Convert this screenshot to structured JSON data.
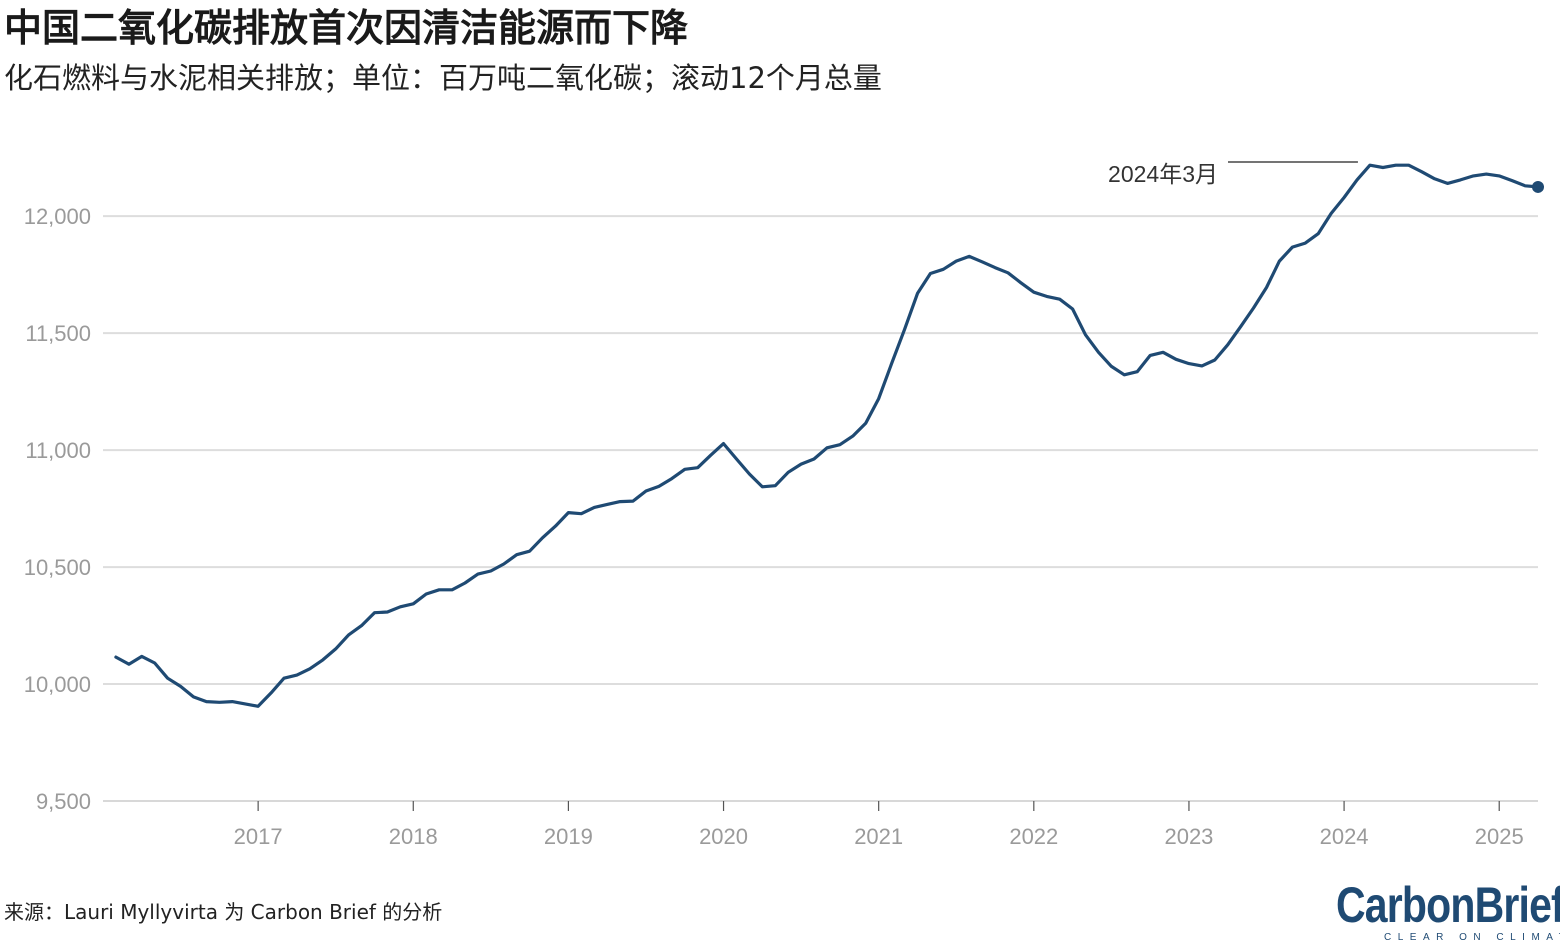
{
  "title": "中国二氧化碳排放首次因清洁能源而下降",
  "subtitle": "化石燃料与水泥相关排放；单位：百万吨二氧化碳；滚动12个月总量",
  "source": "来源：Lauri Myllyvirta 为 Carbon Brief 的分析",
  "logo": {
    "main": "CarbonBrief",
    "sub": "CLEAR ON CLIMATE"
  },
  "colors": {
    "line": "#1f4a73",
    "grid": "#dddddd",
    "axis_text": "#9a9a9a"
  },
  "chart_data": {
    "type": "line",
    "title": "中国二氧化碳排放首次因清洁能源而下降",
    "ylim": [
      9500,
      12300
    ],
    "xlim": [
      "2016-01",
      "2025-04"
    ],
    "yticks": [
      9500,
      10000,
      10500,
      11000,
      11500,
      12000
    ],
    "ytick_labels": [
      "9,500",
      "10,000",
      "10,500",
      "11,000",
      "11,500",
      "12,000"
    ],
    "xticks": [
      "2017-01",
      "2018-01",
      "2019-01",
      "2020-01",
      "2021-01",
      "2022-01",
      "2023-01",
      "2024-01",
      "2025-01"
    ],
    "xtick_labels": [
      "2017",
      "2018",
      "2019",
      "2020",
      "2021",
      "2022",
      "2023",
      "2024",
      "2025"
    ],
    "grid": true,
    "annotations": [
      {
        "x": "2024-03",
        "label": "2024年3月"
      }
    ],
    "series": [
      {
        "x": [
          "2016-02",
          "2016-03",
          "2016-04",
          "2016-05",
          "2016-06",
          "2016-07",
          "2016-08",
          "2016-09",
          "2016-10",
          "2016-11",
          "2016-12",
          "2017-01",
          "2017-02",
          "2017-03",
          "2017-04",
          "2017-05",
          "2017-06",
          "2017-07",
          "2017-08",
          "2017-09",
          "2017-10",
          "2017-11",
          "2017-12",
          "2018-01",
          "2018-02",
          "2018-03",
          "2018-04",
          "2018-05",
          "2018-06",
          "2018-07",
          "2018-08",
          "2018-09",
          "2018-10",
          "2018-11",
          "2018-12",
          "2019-01",
          "2019-02",
          "2019-03",
          "2019-04",
          "2019-05",
          "2019-06",
          "2019-07",
          "2019-08",
          "2019-09",
          "2019-10",
          "2019-11",
          "2019-12",
          "2020-01",
          "2020-02",
          "2020-03",
          "2020-04",
          "2020-05",
          "2020-06",
          "2020-07",
          "2020-08",
          "2020-09",
          "2020-10",
          "2020-11",
          "2020-12",
          "2021-01",
          "2021-02",
          "2021-03",
          "2021-04",
          "2021-05",
          "2021-06",
          "2021-07",
          "2021-08",
          "2021-09",
          "2021-10",
          "2021-11",
          "2021-12",
          "2022-01",
          "2022-02",
          "2022-03",
          "2022-04",
          "2022-05",
          "2022-06",
          "2022-07",
          "2022-08",
          "2022-09",
          "2022-10",
          "2022-11",
          "2022-12",
          "2023-01",
          "2023-02",
          "2023-03",
          "2023-04",
          "2023-05",
          "2023-06",
          "2023-07",
          "2023-08",
          "2023-09",
          "2023-10",
          "2023-11",
          "2023-12",
          "2024-01",
          "2024-02",
          "2024-03",
          "2024-04",
          "2024-05",
          "2024-06",
          "2024-07",
          "2024-08",
          "2024-09",
          "2024-10",
          "2024-11",
          "2024-12",
          "2025-01",
          "2025-02",
          "2025-03",
          "2025-04"
        ],
        "values": [
          10115,
          10085,
          10118,
          10090,
          10025,
          9990,
          9945,
          9925,
          9922,
          9925,
          9915,
          9905,
          9962,
          10025,
          10038,
          10065,
          10103,
          10150,
          10210,
          10250,
          10305,
          10308,
          10330,
          10343,
          10385,
          10403,
          10403,
          10432,
          10470,
          10483,
          10513,
          10553,
          10568,
          10625,
          10675,
          10733,
          10728,
          10755,
          10768,
          10780,
          10782,
          10825,
          10845,
          10878,
          10918,
          10925,
          10978,
          11028,
          10962,
          10898,
          10843,
          10848,
          10905,
          10940,
          10962,
          11010,
          11023,
          11060,
          11115,
          11220,
          11370,
          11515,
          11670,
          11755,
          11773,
          11808,
          11828,
          11805,
          11780,
          11758,
          11715,
          11675,
          11657,
          11645,
          11603,
          11493,
          11418,
          11358,
          11322,
          11335,
          11405,
          11418,
          11388,
          11370,
          11360,
          11385,
          11450,
          11528,
          11608,
          11695,
          11808,
          11868,
          11885,
          11925,
          12012,
          12080,
          12155,
          12218,
          12208,
          12218,
          12218,
          12190,
          12160,
          12140,
          12155,
          12172,
          12180,
          12172,
          12152,
          12130,
          12125
        ]
      }
    ]
  }
}
